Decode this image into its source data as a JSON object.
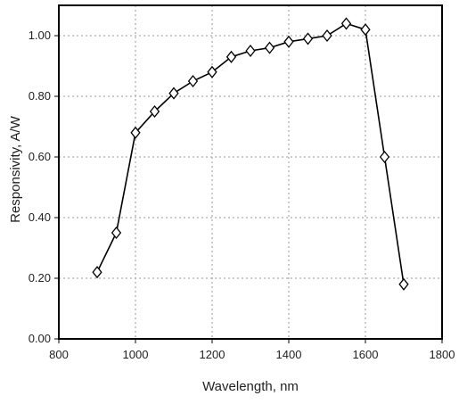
{
  "chart_data": {
    "type": "line",
    "xlabel": "Wavelength, nm",
    "ylabel": "Responsivity, A/W",
    "xlim": [
      800,
      1800
    ],
    "ylim": [
      0.0,
      1.1
    ],
    "xticks": [
      800,
      1000,
      1200,
      1400,
      1600,
      1800
    ],
    "xtick_labels": [
      "800",
      "1000",
      "1200",
      "1400",
      "1600",
      "1800"
    ],
    "yticks": [
      0.0,
      0.2,
      0.4,
      0.6,
      0.8,
      1.0
    ],
    "ytick_labels": [
      "0.00",
      "0.20",
      "0.40",
      "0.60",
      "0.80",
      "1.00"
    ],
    "grid": true,
    "marker": "diamond",
    "colors": {
      "line": "#000000",
      "marker_fill": "#ffffff",
      "grid": "#9a9a9a",
      "frame": "#000000"
    },
    "series": [
      {
        "x": [
          900,
          950,
          1000,
          1050,
          1100,
          1150,
          1200,
          1250,
          1300,
          1350,
          1400,
          1450,
          1500,
          1550,
          1600,
          1650,
          1700
        ],
        "y": [
          0.22,
          0.35,
          0.68,
          0.75,
          0.81,
          0.85,
          0.88,
          0.93,
          0.95,
          0.96,
          0.98,
          0.99,
          1.0,
          1.04,
          1.02,
          0.6,
          0.18
        ]
      }
    ]
  }
}
